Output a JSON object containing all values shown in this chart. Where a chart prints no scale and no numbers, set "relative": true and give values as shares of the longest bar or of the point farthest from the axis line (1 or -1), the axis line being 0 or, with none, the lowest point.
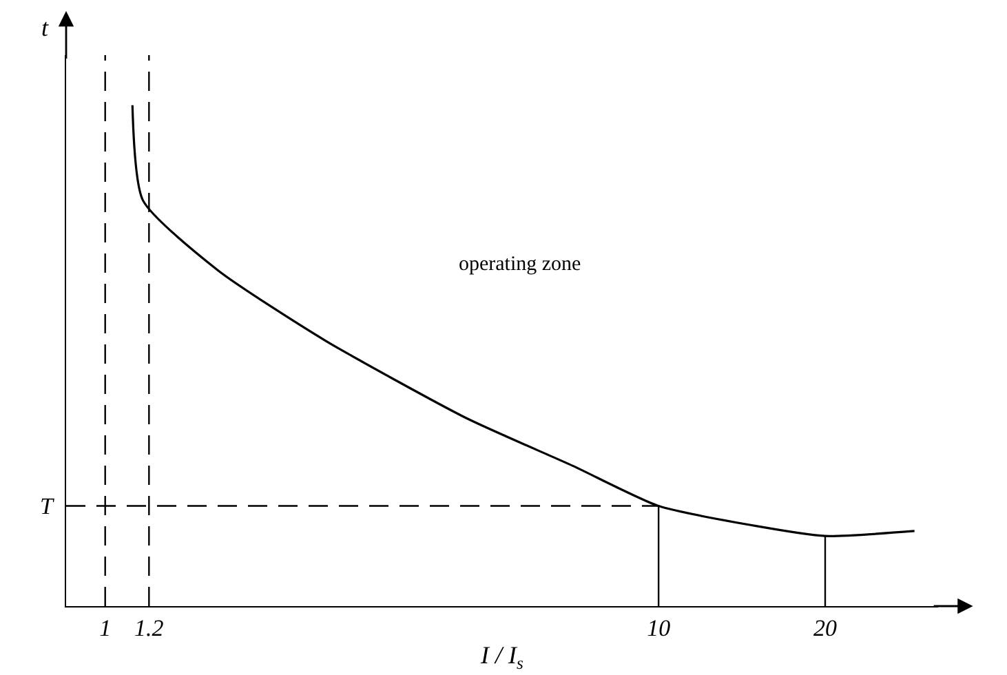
{
  "chart_data": {
    "type": "line",
    "relative": true,
    "log": "x",
    "xlabel": "I / I$_{s}$",
    "ylabel": "t",
    "xlim": [
      0.85,
      32
    ],
    "xticks": [
      1,
      1.2,
      10,
      20
    ],
    "series": [
      {
        "color": "#000000",
        "x": [
          1.12,
          1.17,
          1.6,
          2.5,
          4.5,
          7.0,
          10,
          15,
          20,
          29
        ],
        "values": [
          1,
          0.81,
          0.67,
          0.53,
          0.375,
          0.28,
          0.2,
          0.16,
          0.14,
          0.15
        ]
      }
    ],
    "ref_lines": [
      {
        "axis": "x",
        "value": 1,
        "label": null,
        "line_style": "dashed"
      },
      {
        "axis": "x",
        "value": 1.2,
        "label": null,
        "line_style": "dashed"
      },
      {
        "axis": "y",
        "value": 0.2,
        "label": "T",
        "line_style": "dashed"
      },
      {
        "axis": "x",
        "value": 10,
        "label": null,
        "line_style": "solid"
      },
      {
        "axis": "x",
        "value": 20,
        "label": null,
        "line_style": "solid"
      }
    ],
    "annotations": [
      "operating zone"
    ],
    "grid": false,
    "marker": "none",
    "line_style": "solid"
  }
}
